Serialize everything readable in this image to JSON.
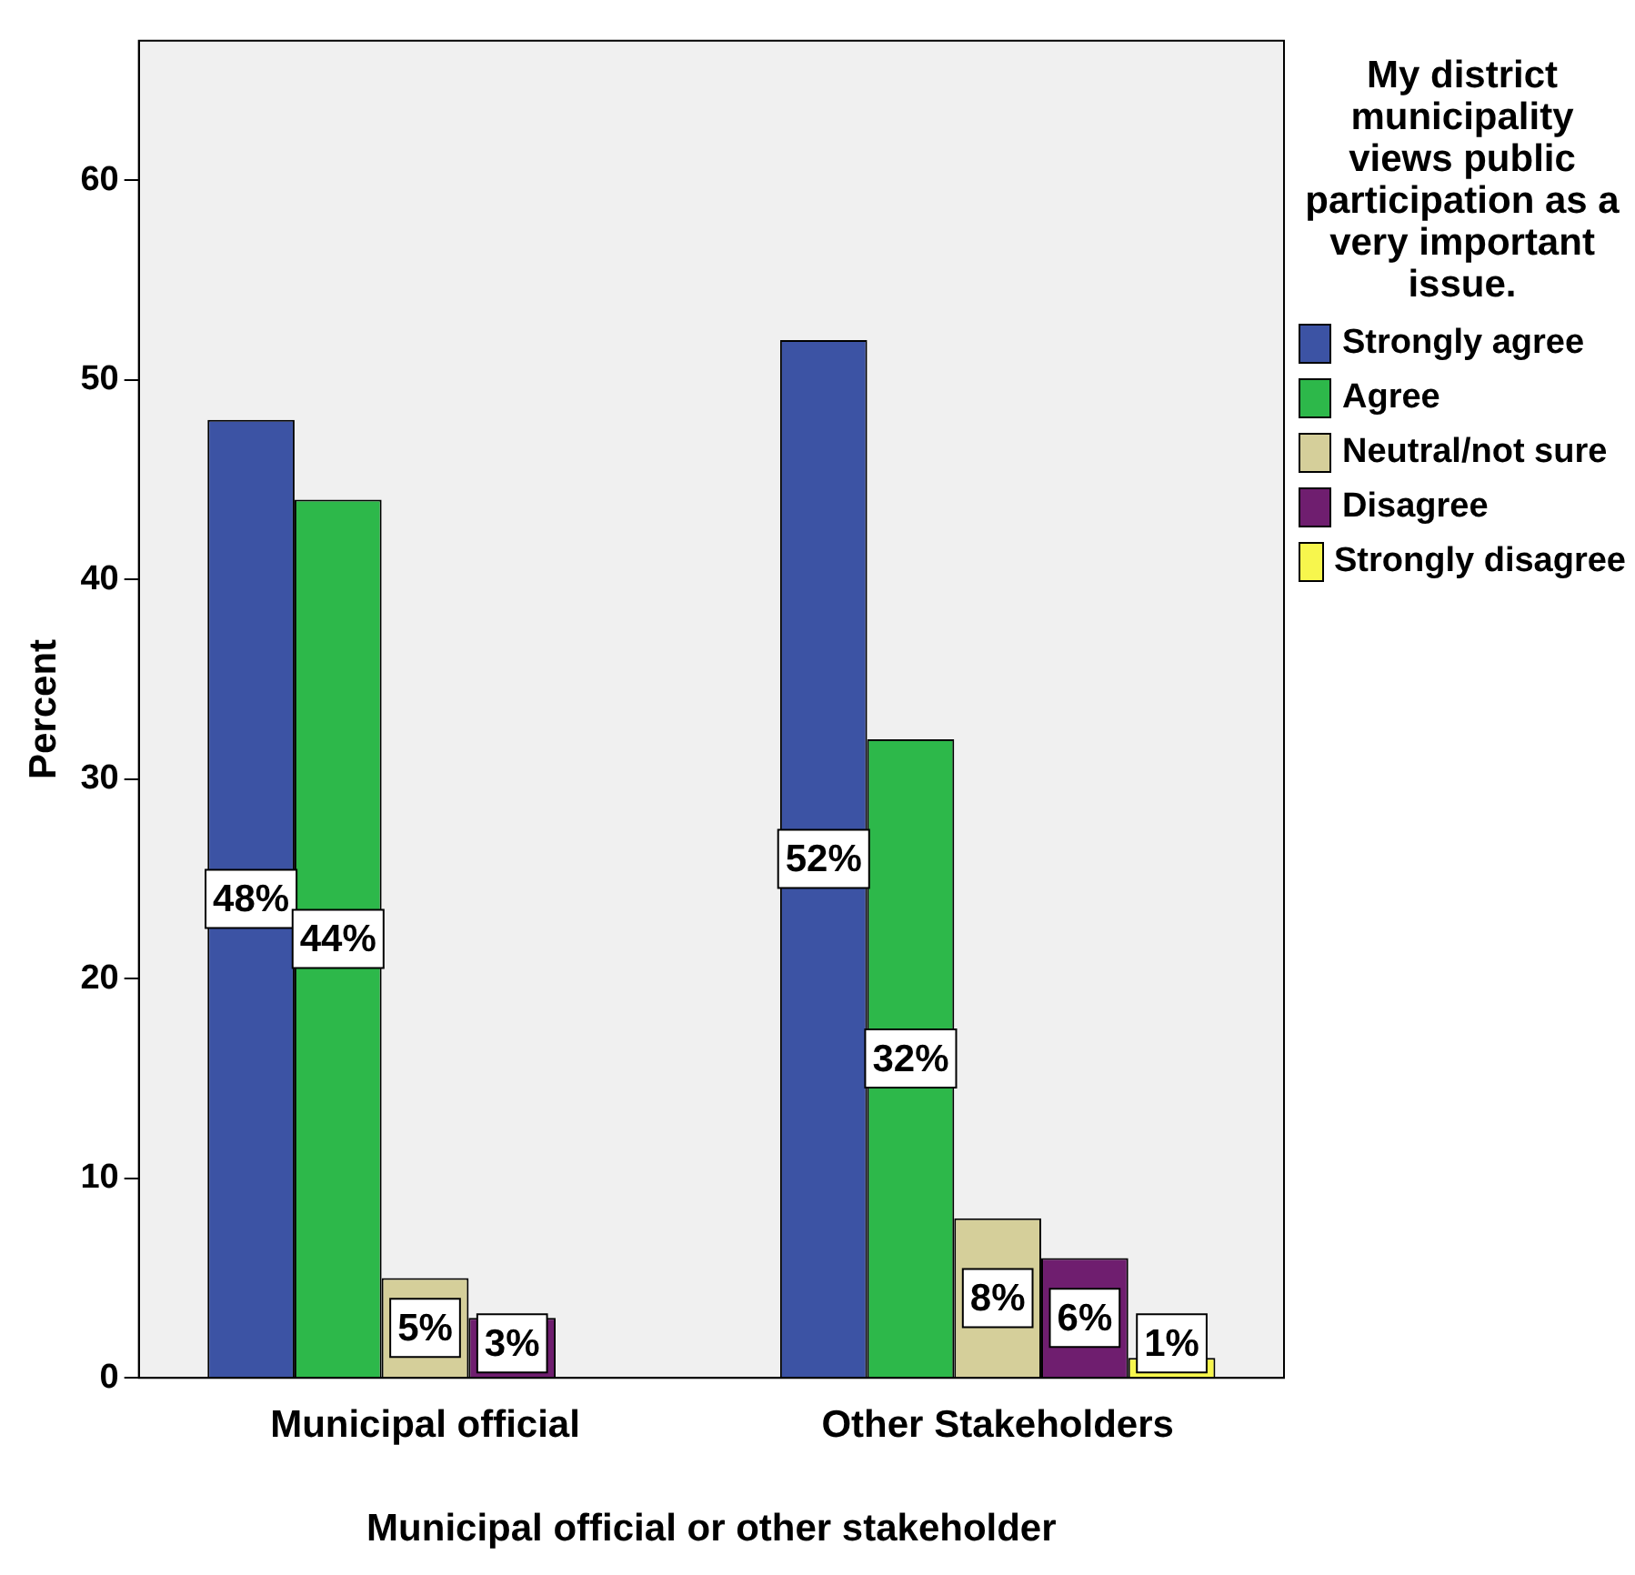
{
  "chart_data": {
    "type": "bar",
    "categories": [
      "Municipal official",
      "Other Stakeholders"
    ],
    "xlabel": "Municipal official or other stakeholder",
    "ylabel": "Percent",
    "legend_title": "My district municipality views public participation as a very important issue.",
    "legend": "right",
    "grid": false,
    "ylim": [
      0,
      67
    ],
    "yticks": [
      0,
      10,
      20,
      30,
      40,
      50,
      60
    ],
    "series": [
      {
        "name": "Strongly agree",
        "color": "#3c53a4",
        "values": [
          48,
          52
        ],
        "value_labels": [
          "48%",
          "52%"
        ]
      },
      {
        "name": "Agree",
        "color": "#2db84a",
        "values": [
          44,
          32
        ],
        "value_labels": [
          "44%",
          "32%"
        ]
      },
      {
        "name": "Neutral/not sure",
        "color": "#d5cf9a",
        "values": [
          5,
          8
        ],
        "value_labels": [
          "5%",
          "8%"
        ]
      },
      {
        "name": "Disagree",
        "color": "#6f1e6f",
        "values": [
          3,
          6
        ],
        "value_labels": [
          "3%",
          "6%"
        ]
      },
      {
        "name": "Strongly disagree",
        "color": "#f7f64d",
        "values": [
          null,
          1
        ],
        "value_labels": [
          null,
          "1%"
        ]
      }
    ]
  }
}
